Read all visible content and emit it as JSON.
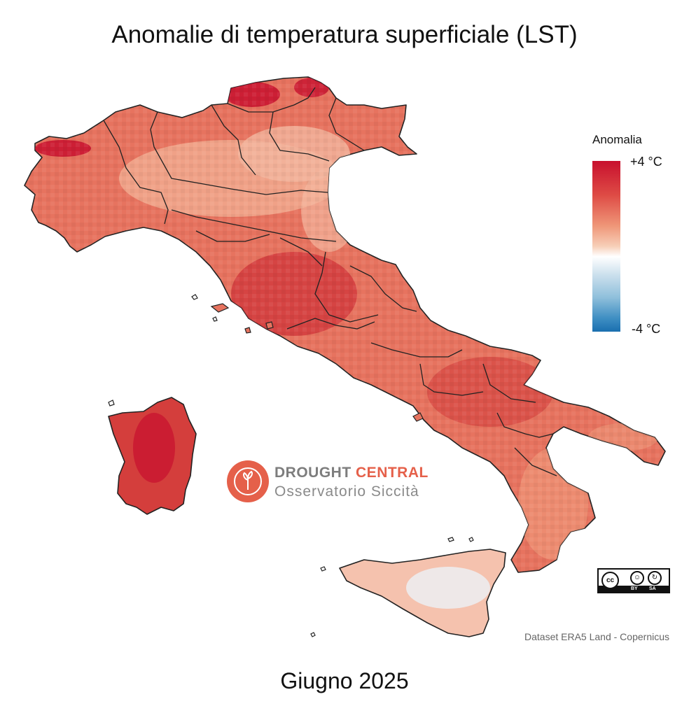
{
  "title": "Anomalie di temperatura superficiale (LST)",
  "subtitle": "Giugno 2025",
  "legend": {
    "title": "Anomalia",
    "max_label": "+4 °C",
    "min_label": "-4 °C",
    "range": [
      -4,
      4
    ],
    "unit": "°C",
    "colors": {
      "warm": "#c8102e",
      "neutral": "#ffffff",
      "cool": "#1a6faf"
    }
  },
  "logo": {
    "word_1a": "DROUGHT",
    "word_1b": "CENTRAL",
    "word_2": "Osservatorio Siccità"
  },
  "license": {
    "cc": "cc",
    "by": "BY",
    "sa": "SA"
  },
  "credit": "Dataset ERA5 Land - Copernicus",
  "regions": [
    {
      "name": "north-west",
      "level": 0.55
    },
    {
      "name": "alps-north",
      "level": 0.7
    },
    {
      "name": "north-east",
      "level": 0.45
    },
    {
      "name": "po-valley",
      "level": 0.45
    },
    {
      "name": "central-tyrrhenian",
      "level": 0.75
    },
    {
      "name": "central-adriatic",
      "level": 0.6
    },
    {
      "name": "south",
      "level": 0.72
    },
    {
      "name": "calabria",
      "level": 0.5
    },
    {
      "name": "sicily",
      "level": 0.12
    },
    {
      "name": "sardinia",
      "level": 0.82
    }
  ]
}
